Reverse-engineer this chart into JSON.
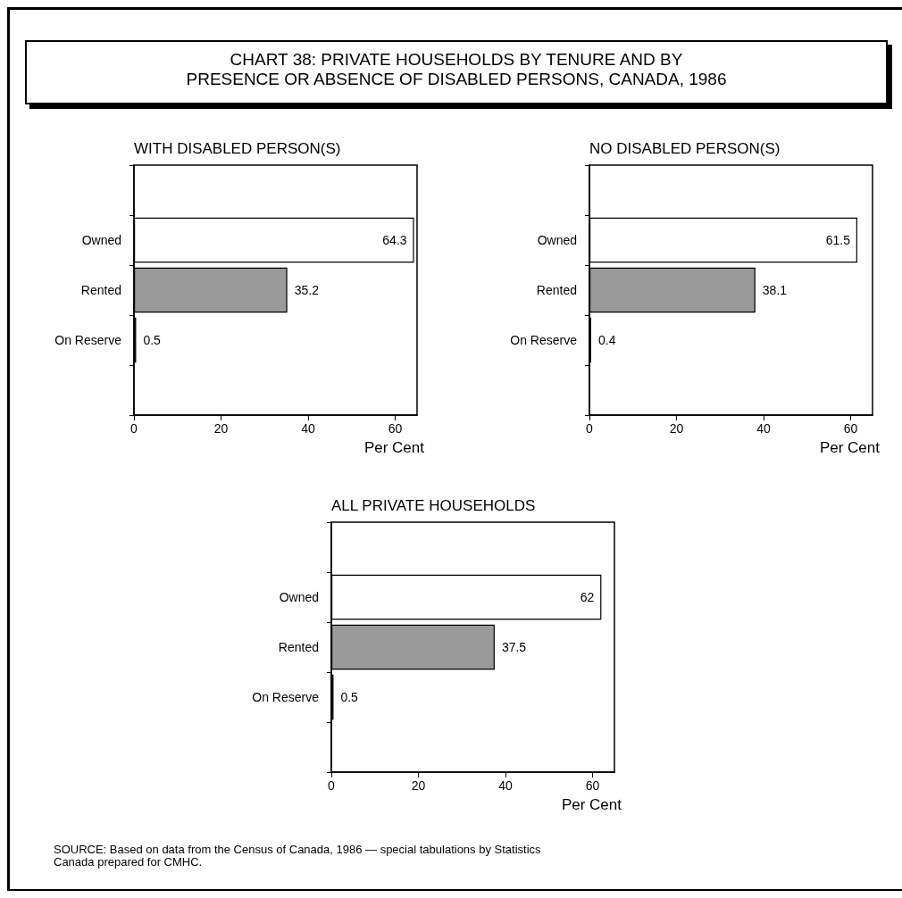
{
  "chart_data": [
    {
      "type": "bar",
      "orientation": "horizontal",
      "title": "CHART 38:  PRIVATE HOUSEHOLDS BY TENURE AND BY\nPRESENCE OR ABSENCE OF DISABLED PERSONS, CANADA, 1986",
      "subtitle": "WITH DISABLED PERSON(S)",
      "xlabel": "Per Cent",
      "categories": [
        null,
        "Owned",
        "Rented",
        "On Reserve",
        null
      ],
      "values": [
        null,
        64.3,
        35.2,
        0.5,
        null
      ],
      "colors": [
        "#ffffff",
        "#ffffff",
        "#9a9a9a",
        "#ffffff",
        "#ffffff"
      ],
      "xlim": [
        0,
        65
      ],
      "xticks": [
        0,
        20,
        40,
        60
      ],
      "data_labels": true
    },
    {
      "type": "bar",
      "orientation": "horizontal",
      "subtitle": "NO DISABLED PERSON(S)",
      "xlabel": "Per Cent",
      "categories": [
        null,
        "Owned",
        "Rented",
        "On Reserve",
        null
      ],
      "values": [
        null,
        61.5,
        38.1,
        0.4,
        null
      ],
      "colors": [
        "#ffffff",
        "#ffffff",
        "#9a9a9a",
        "#ffffff",
        "#ffffff"
      ],
      "xlim": [
        0,
        65
      ],
      "xticks": [
        0,
        20,
        40,
        60
      ],
      "data_labels": true
    },
    {
      "type": "bar",
      "orientation": "horizontal",
      "subtitle": "ALL PRIVATE HOUSEHOLDS",
      "xlabel": "Per Cent",
      "categories": [
        null,
        "Owned",
        "Rented",
        "On Reserve",
        null
      ],
      "values": [
        null,
        62,
        37.5,
        0.5,
        null
      ],
      "colors": [
        "#ffffff",
        "#ffffff",
        "#9a9a9a",
        "#ffffff",
        "#ffffff"
      ],
      "xlim": [
        0,
        65
      ],
      "xticks": [
        0,
        20,
        40,
        60
      ],
      "data_labels": true,
      "annotations": [
        "SOURCE:  Based on data from the Census of Canada, 1986  — special tabulations by Statistics\nCanada prepared for CMHC."
      ]
    }
  ]
}
